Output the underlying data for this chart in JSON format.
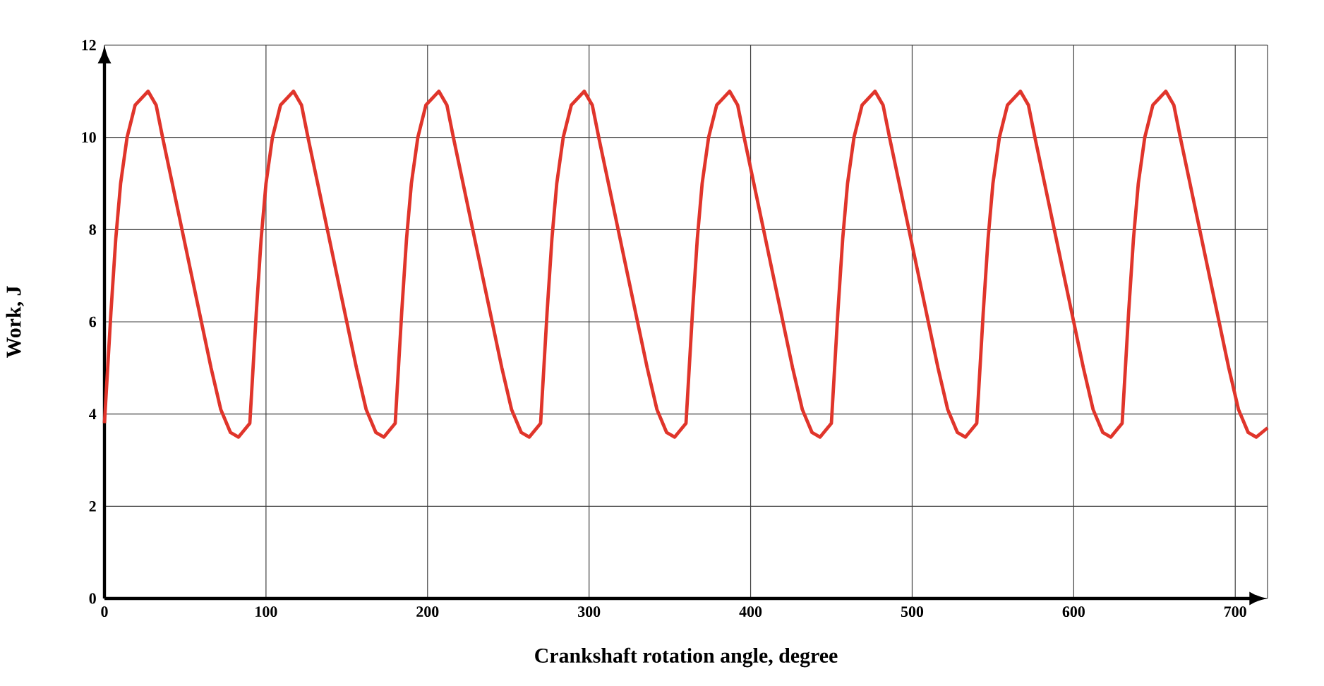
{
  "chart_data": {
    "type": "line",
    "xlabel": "Crankshaft rotation angle, degree",
    "ylabel": "Work, J",
    "xlim": [
      0,
      720
    ],
    "ylim": [
      0,
      12
    ],
    "xticks": [
      0,
      100,
      200,
      300,
      400,
      500,
      600,
      700,
      {
        "value": 720,
        "label": null
      }
    ],
    "yticks": [
      0,
      2,
      4,
      6,
      8,
      10,
      12
    ],
    "grid": true,
    "marker": "none",
    "line_style": "solid",
    "series": [
      {
        "color": "#e0352b",
        "x": [
          0,
          2,
          4,
          7,
          10,
          14,
          19,
          27,
          32,
          36,
          42,
          48,
          54,
          60,
          66,
          72,
          78,
          83,
          90,
          92,
          94,
          97,
          100,
          104,
          109,
          117,
          122,
          126,
          132,
          138,
          144,
          150,
          156,
          162,
          168,
          173,
          180,
          182,
          184,
          187,
          190,
          194,
          199,
          207,
          212,
          216,
          222,
          228,
          234,
          240,
          246,
          252,
          258,
          263,
          270,
          272,
          274,
          277,
          280,
          284,
          289,
          297,
          302,
          306,
          312,
          318,
          324,
          330,
          336,
          342,
          348,
          353,
          360,
          362,
          364,
          367,
          370,
          374,
          379,
          387,
          392,
          396,
          402,
          408,
          414,
          420,
          426,
          432,
          438,
          443,
          450,
          452,
          454,
          457,
          460,
          464,
          469,
          477,
          482,
          486,
          492,
          498,
          504,
          510,
          516,
          522,
          528,
          533,
          540,
          542,
          544,
          547,
          550,
          554,
          559,
          567,
          572,
          576,
          582,
          588,
          594,
          600,
          606,
          612,
          618,
          623,
          630,
          632,
          634,
          637,
          640,
          644,
          649,
          657,
          662,
          666,
          672,
          678,
          684,
          690,
          696,
          702,
          708,
          713,
          720
        ],
        "values": [
          3.8,
          5,
          6.2,
          7.8,
          9,
          10,
          10.7,
          11,
          10.7,
          10,
          9,
          8,
          7,
          6,
          5,
          4.1,
          3.6,
          3.5,
          3.8,
          5,
          6.2,
          7.8,
          9,
          10,
          10.7,
          11,
          10.7,
          10,
          9,
          8,
          7,
          6,
          5,
          4.1,
          3.6,
          3.5,
          3.8,
          5,
          6.2,
          7.8,
          9,
          10,
          10.7,
          11,
          10.7,
          10,
          9,
          8,
          7,
          6,
          5,
          4.1,
          3.6,
          3.5,
          3.8,
          5,
          6.2,
          7.8,
          9,
          10,
          10.7,
          11,
          10.7,
          10,
          9,
          8,
          7,
          6,
          5,
          4.1,
          3.6,
          3.5,
          3.8,
          5,
          6.2,
          7.8,
          9,
          10,
          10.7,
          11,
          10.7,
          10,
          9,
          8,
          7,
          6,
          5,
          4.1,
          3.6,
          3.5,
          3.8,
          5,
          6.2,
          7.8,
          9,
          10,
          10.7,
          11,
          10.7,
          10,
          9,
          8,
          7,
          6,
          5,
          4.1,
          3.6,
          3.5,
          3.8,
          5,
          6.2,
          7.8,
          9,
          10,
          10.7,
          11,
          10.7,
          10,
          9,
          8,
          7,
          6,
          5,
          4.1,
          3.6,
          3.5,
          3.8,
          5,
          6.2,
          7.8,
          9,
          10,
          10.7,
          11,
          10.7,
          10,
          9,
          8,
          7,
          6,
          5,
          4.1,
          3.6,
          3.5,
          3.7
        ]
      }
    ]
  }
}
